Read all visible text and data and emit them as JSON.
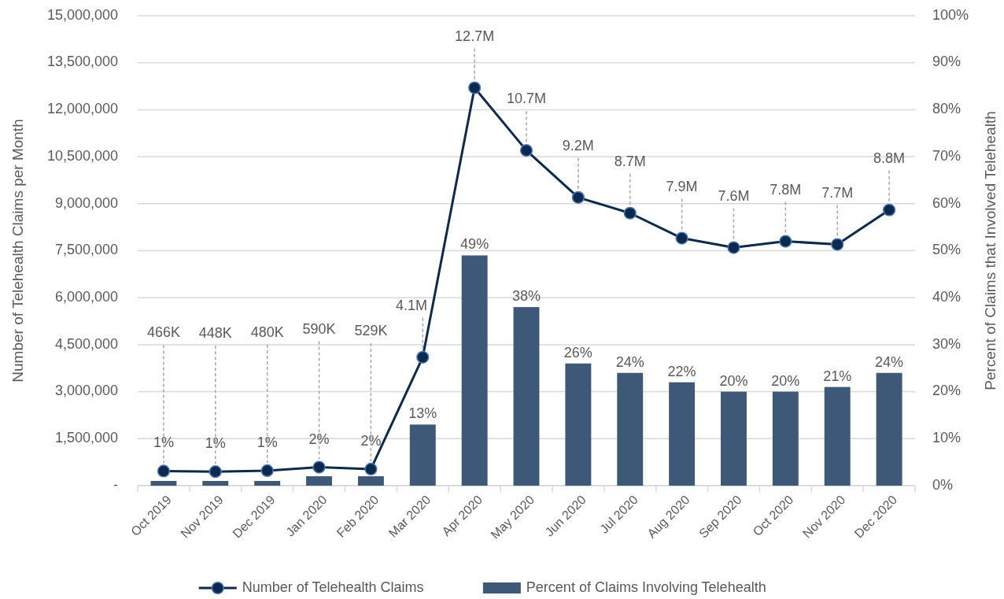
{
  "chart_data": {
    "type": "bar",
    "ylabel": "Number of Telehealth Claims per Month",
    "y2label": "Percent of Claims that Involved Telehealth",
    "categories": [
      "Oct 2019",
      "Nov 2019",
      "Dec 2019",
      "Jan 2020",
      "Feb 2020",
      "Mar 2020",
      "Apr 2020",
      "May 2020",
      "Jun 2020",
      "Jul 2020",
      "Aug 2020",
      "Sep 2020",
      "Oct 2020",
      "Nov 2020",
      "Dec 2020"
    ],
    "series": [
      {
        "name": "Number of Telehealth Claims",
        "type": "line",
        "color": "#0d2a4c",
        "marker": "circle",
        "values": [
          466000,
          448000,
          480000,
          590000,
          529000,
          4100000,
          12700000,
          10700000,
          9200000,
          8700000,
          7900000,
          7600000,
          7800000,
          7700000,
          8800000
        ],
        "value_labels": [
          "466K",
          "448K",
          "480K",
          "590K",
          "529K",
          "4.1M",
          "12.7M",
          "10.7M",
          "9.2M",
          "8.7M",
          "7.9M",
          "7.6M",
          "7.8M",
          "7.7M",
          "8.8M"
        ]
      },
      {
        "name": "Percent of Claims Involving Telehealth",
        "axis": "y2",
        "color": "#3e5878",
        "values": [
          1,
          1,
          1,
          2,
          2,
          13,
          49,
          38,
          26,
          24,
          22,
          20,
          20,
          21,
          24
        ],
        "value_labels": [
          "1%",
          "1%",
          "1%",
          "2%",
          "2%",
          "13%",
          "49%",
          "38%",
          "26%",
          "24%",
          "22%",
          "20%",
          "20%",
          "21%",
          "24%"
        ]
      }
    ],
    "ylim": [
      0,
      15000000
    ],
    "yticks": [
      {
        "value": 0,
        "label": "-"
      },
      {
        "value": 1500000,
        "label": "1,500,000"
      },
      {
        "value": 3000000,
        "label": "3,000,000"
      },
      {
        "value": 4500000,
        "label": "4,500,000"
      },
      {
        "value": 6000000,
        "label": "6,000,000"
      },
      {
        "value": 7500000,
        "label": "7,500,000"
      },
      {
        "value": 9000000,
        "label": "9,000,000"
      },
      {
        "value": 10500000,
        "label": "10,500,000"
      },
      {
        "value": 12000000,
        "label": "12,000,000"
      },
      {
        "value": 13500000,
        "label": "13,500,000"
      },
      {
        "value": 15000000,
        "label": "15,000,000"
      }
    ],
    "y2lim": [
      0,
      100
    ],
    "y2ticks": [
      {
        "value": 0,
        "label": "0%"
      },
      {
        "value": 10,
        "label": "10%"
      },
      {
        "value": 20,
        "label": "20%"
      },
      {
        "value": 30,
        "label": "30%"
      },
      {
        "value": 40,
        "label": "40%"
      },
      {
        "value": 50,
        "label": "50%"
      },
      {
        "value": 60,
        "label": "60%"
      },
      {
        "value": 70,
        "label": "70%"
      },
      {
        "value": 80,
        "label": "80%"
      },
      {
        "value": 90,
        "label": "90%"
      },
      {
        "value": 100,
        "label": "100%"
      }
    ],
    "grid": "y",
    "legend": "bottom"
  }
}
